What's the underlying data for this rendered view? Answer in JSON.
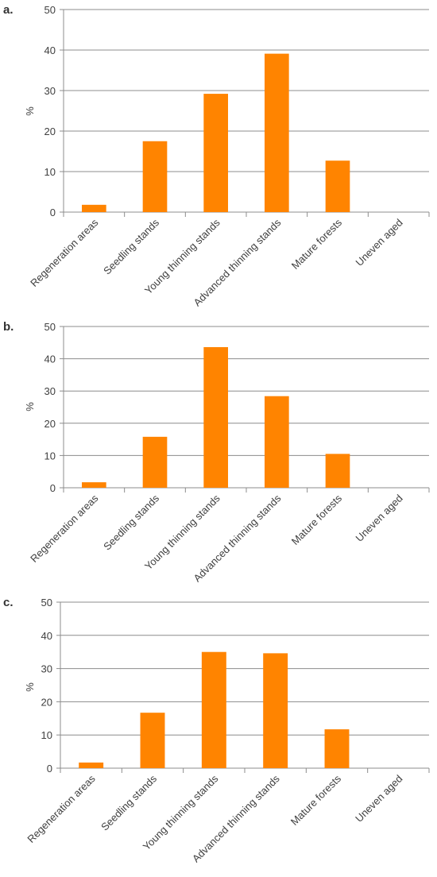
{
  "colors": {
    "bar": "#FF8400",
    "grid": "#8c8c8c",
    "axis": "#8c8c8c",
    "text": "#404040"
  },
  "chart_data": [
    {
      "type": "bar",
      "panel_label": "a.",
      "title": "",
      "xlabel": "",
      "ylabel": "%",
      "ylim": [
        0,
        50
      ],
      "yticks": [
        0,
        10,
        20,
        30,
        40,
        50
      ],
      "grid": true,
      "categories": [
        "Regeneration areas",
        "Seedling stands",
        "Young thinning stands",
        "Advanced thinning stands",
        "Mature forests",
        "Uneven aged"
      ],
      "values": [
        1.8,
        17.5,
        29.2,
        39.1,
        12.7,
        0
      ]
    },
    {
      "type": "bar",
      "panel_label": "b.",
      "title": "",
      "xlabel": "",
      "ylabel": "%",
      "ylim": [
        0,
        50
      ],
      "yticks": [
        0,
        10,
        20,
        30,
        40,
        50
      ],
      "grid": true,
      "categories": [
        "Regeneration areas",
        "Seedling stands",
        "Young thinning stands",
        "Advanced thinning stands",
        "Mature forests",
        "Uneven aged"
      ],
      "values": [
        1.7,
        15.8,
        43.6,
        28.4,
        10.5,
        0
      ]
    },
    {
      "type": "bar",
      "panel_label": "c.",
      "title": "",
      "xlabel": "",
      "ylabel": "%",
      "ylim": [
        0,
        50
      ],
      "yticks": [
        0,
        10,
        20,
        30,
        40,
        50
      ],
      "grid": true,
      "categories": [
        "Regeneration areas",
        "Seedling stands",
        "Young thinning stands",
        "Advanced thinning stands",
        "Mature forests",
        "Uneven aged"
      ],
      "values": [
        1.7,
        16.7,
        35.0,
        34.6,
        11.7,
        0
      ]
    }
  ]
}
